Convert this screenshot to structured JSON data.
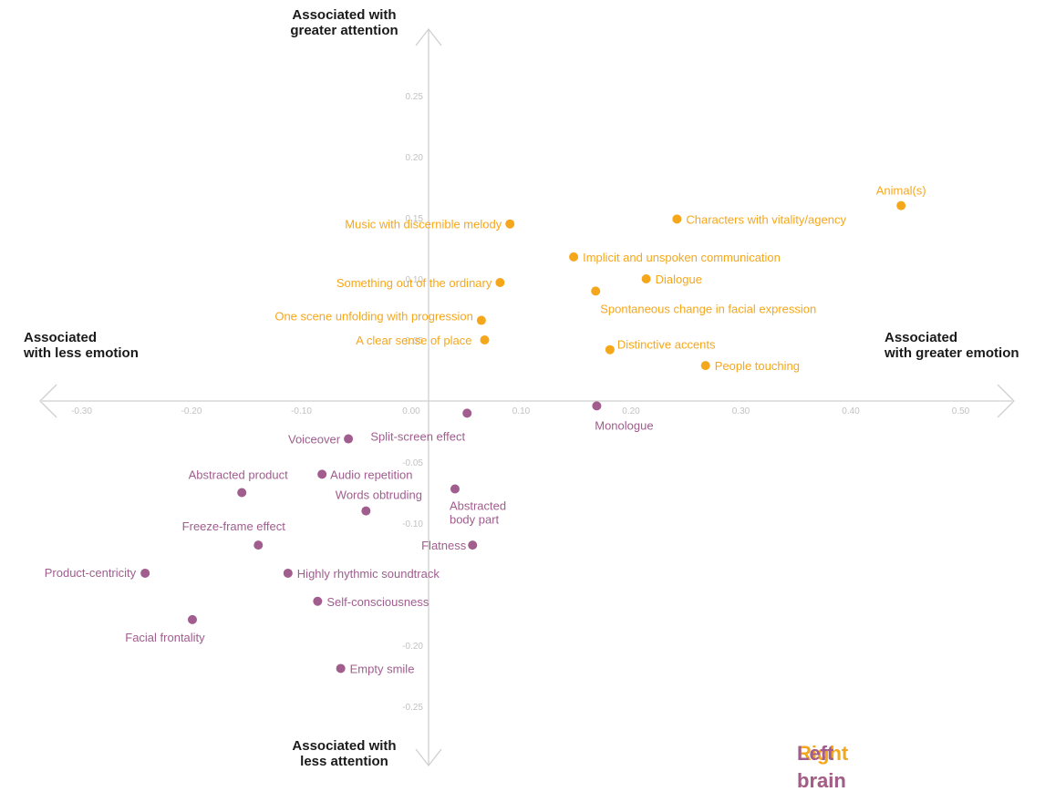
{
  "colors": {
    "right_brain": "#f5a71b",
    "left_brain": "#a05d8e",
    "axis": "#cfcfcf",
    "tick": "#c2c2c2"
  },
  "quadrant_labels": {
    "top": [
      "Associated with",
      "greater attention"
    ],
    "bottom": [
      "Associated with",
      "less attention"
    ],
    "left": [
      "Associated",
      "with less emotion"
    ],
    "right": [
      "Associated",
      "with greater emotion"
    ]
  },
  "legend": {
    "right": "Right brain",
    "left": "Left brain"
  },
  "chart_data": {
    "type": "scatter",
    "xlabel": "",
    "ylabel": "",
    "grid": false,
    "legend_position": "bottom-right",
    "x_ticks": [
      -0.3,
      -0.2,
      -0.1,
      0.0,
      0.1,
      0.2,
      0.3,
      0.4,
      0.5
    ],
    "x_tick_labels": [
      "-0.30",
      "-0.20",
      "-0.10",
      "0.00",
      "0.10",
      "0.20",
      "0.30",
      "0.40",
      "0.50"
    ],
    "y_ticks": [
      0.25,
      0.2,
      0.15,
      0.1,
      0.05,
      -0.05,
      -0.1,
      -0.2,
      -0.25
    ],
    "y_tick_labels": [
      "0.25",
      "0.20",
      "0.15",
      "0.10",
      "0.05",
      "-0.05",
      "-0.10",
      "-0.20",
      "-0.25"
    ],
    "series": [
      {
        "name": "Right brain",
        "points": [
          {
            "label": "Animal(s)",
            "x": 0.44,
            "y": 0.16
          },
          {
            "label": "Characters with vitality/agency",
            "x": 0.236,
            "y": 0.149
          },
          {
            "label": "Music with discernible melody",
            "x": 0.084,
            "y": 0.145
          },
          {
            "label": "Implicit and unspoken communication",
            "x": 0.142,
            "y": 0.118
          },
          {
            "label": "Dialogue",
            "x": 0.208,
            "y": 0.1
          },
          {
            "label": "Something out of the ordinary",
            "x": 0.075,
            "y": 0.097
          },
          {
            "label": "Spontaneous change in facial expression",
            "x": 0.162,
            "y": 0.09
          },
          {
            "label": "One scene unfolding with progression",
            "x": 0.058,
            "y": 0.066
          },
          {
            "label": "A clear sense of place",
            "x": 0.061,
            "y": 0.05
          },
          {
            "label": "Distinctive accents",
            "x": 0.175,
            "y": 0.042
          },
          {
            "label": "People touching",
            "x": 0.262,
            "y": 0.029
          }
        ]
      },
      {
        "name": "Left brain",
        "points": [
          {
            "label": "Monologue",
            "x": 0.163,
            "y": -0.004
          },
          {
            "label": "Split-screen effect",
            "x": 0.045,
            "y": -0.01
          },
          {
            "label": "Voiceover",
            "x": -0.063,
            "y": -0.031
          },
          {
            "label": "Audio repetition",
            "x": -0.087,
            "y": -0.06
          },
          {
            "label": "Abstracted product",
            "x": -0.16,
            "y": -0.075
          },
          {
            "label": "Abstracted body part",
            "x": 0.034,
            "y": -0.072
          },
          {
            "label": "Words obtruding",
            "x": -0.047,
            "y": -0.09
          },
          {
            "label": "Freeze-frame effect",
            "x": -0.145,
            "y": -0.118
          },
          {
            "label": "Flatness",
            "x": 0.05,
            "y": -0.118
          },
          {
            "label": "Product-centricity",
            "x": -0.248,
            "y": -0.141
          },
          {
            "label": "Highly rhythmic soundtrack",
            "x": -0.118,
            "y": -0.141
          },
          {
            "label": "Self-consciousness",
            "x": -0.091,
            "y": -0.164
          },
          {
            "label": "Facial frontality",
            "x": -0.205,
            "y": -0.179
          },
          {
            "label": "Empty smile",
            "x": -0.07,
            "y": -0.219
          }
        ]
      }
    ]
  }
}
